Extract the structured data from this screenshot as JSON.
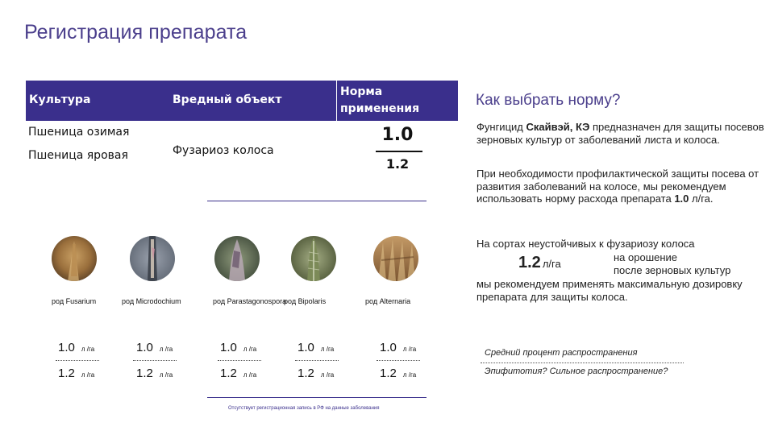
{
  "title": "Регистрация препарата",
  "table": {
    "headers": {
      "crop": "Культура",
      "pest": "Вредный объект",
      "norm": "Норма применения"
    },
    "crops": [
      "Пшеница озимая",
      "Пшеница яровая"
    ],
    "pest": "Фузариоз колоса",
    "norm_top": "1.0",
    "norm_bottom": "1.2"
  },
  "pathogens": [
    {
      "label": "род Fusarium",
      "dose_top": "1.0",
      "dose_bottom": "1.2",
      "unit": "л /га"
    },
    {
      "label": "род Microdochium",
      "dose_top": "1.0",
      "dose_bottom": "1.2",
      "unit": "л /га"
    },
    {
      "label": "род Parastagonospora",
      "dose_top": "1.0",
      "dose_bottom": "1.2",
      "unit": "л /га"
    },
    {
      "label": "род Bipolaris",
      "dose_top": "1.0",
      "dose_bottom": "1.2",
      "unit": "л /га"
    },
    {
      "label": "род Alternaria",
      "dose_top": "1.0",
      "dose_bottom": "1.2",
      "unit": "л /га"
    }
  ],
  "footnote": "Отсутствует регистрационная запись в РФ на данные заболевания",
  "right": {
    "title": "Как выбрать норму?",
    "para1_prefix": "Фунгицид ",
    "para1_product": "Скайвэй, КЭ",
    "para1_suffix": " предназначен для защиты посевов зерновых культур от заболеваний листа и колоса.",
    "para2_prefix": "При необходимости профилактической защиты посева от развития заболеваний на колосе, мы рекомендуем использовать норму расхода препарата ",
    "para2_value": "1.0",
    "para2_suffix": " л/га.",
    "para3": "На сортах неустойчивых к фузариозу колоса",
    "big_value": "1.2",
    "big_unit": "л/га",
    "option1": "на орошение",
    "option2": "после зерновых культур",
    "para4": "мы рекомендуем применять максимальную дозировку препарата для защиты колоса.",
    "question1": "Средний процент распространения",
    "question2": "Эпифитотия? Сильное распространение?"
  },
  "colors": {
    "accent": "#3a2f8c",
    "title": "#4b3f8c"
  }
}
